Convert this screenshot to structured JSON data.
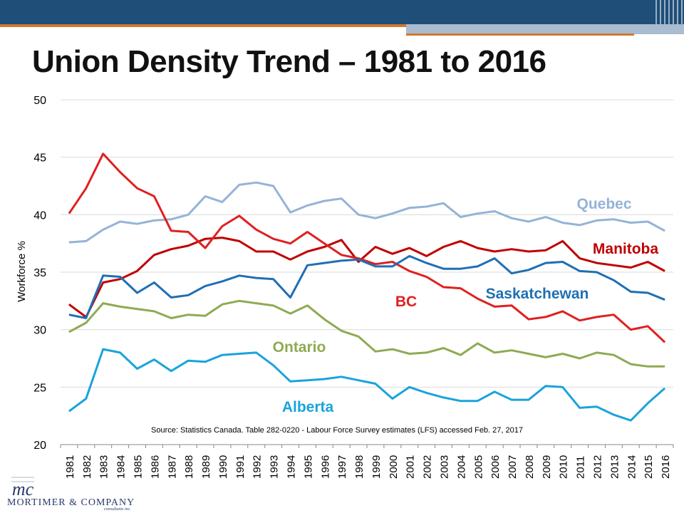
{
  "slide": {
    "title": "Union Density Trend – 1981 to 2016"
  },
  "logo": {
    "company": "MORTIMER & COMPANY",
    "sub": "consultants inc.",
    "monogram": "mc"
  },
  "chart_data": {
    "type": "line",
    "title": "",
    "xlabel": "",
    "ylabel": "Workforce %",
    "ylim": [
      20,
      50
    ],
    "yticks": [
      20,
      25,
      30,
      35,
      40,
      45,
      50
    ],
    "grid": true,
    "source": "Source: Statistics Canada. Table 282-0220  - Labour Force Survey estimates (LFS) accessed Feb. 27, 2017",
    "categories": [
      "1981",
      "1982",
      "1983",
      "1984",
      "1985",
      "1986",
      "1987",
      "1988",
      "1989",
      "1990",
      "1991",
      "1992",
      "1993",
      "1994",
      "1995",
      "1996",
      "1997",
      "1998",
      "1999",
      "2000",
      "2001",
      "2002",
      "2003",
      "2004",
      "2005",
      "2006",
      "2007",
      "2008",
      "2009",
      "2010",
      "2011",
      "2012",
      "2013",
      "2014",
      "2015",
      "2016"
    ],
    "series": [
      {
        "name": "Quebec",
        "color": "#95b3d7",
        "values": [
          37.6,
          37.7,
          38.7,
          39.4,
          39.2,
          39.5,
          39.6,
          40.0,
          41.6,
          41.1,
          42.6,
          42.8,
          42.5,
          40.2,
          40.8,
          41.2,
          41.4,
          40.0,
          39.7,
          40.1,
          40.6,
          40.7,
          41.0,
          39.8,
          40.1,
          40.3,
          39.7,
          39.4,
          39.8,
          39.3,
          39.1,
          39.5,
          39.6,
          39.3,
          39.4,
          38.6
        ]
      },
      {
        "name": "Manitoba",
        "color": "#c00000",
        "values": [
          32.2,
          31.1,
          34.1,
          34.4,
          35.1,
          36.5,
          37.0,
          37.3,
          37.9,
          38.0,
          37.7,
          36.8,
          36.8,
          36.1,
          36.8,
          37.2,
          37.8,
          35.9,
          37.2,
          36.6,
          37.1,
          36.4,
          37.2,
          37.7,
          37.1,
          36.8,
          37.0,
          36.8,
          36.9,
          37.7,
          36.2,
          35.8,
          35.6,
          35.4,
          35.9,
          35.1
        ]
      },
      {
        "name": "BC",
        "color": "#e02020",
        "values": [
          40.1,
          42.3,
          45.3,
          43.7,
          42.3,
          41.6,
          38.6,
          38.5,
          37.1,
          39.0,
          39.9,
          38.7,
          37.9,
          37.5,
          38.5,
          37.5,
          36.5,
          36.2,
          35.7,
          35.9,
          35.1,
          34.6,
          33.7,
          33.6,
          32.7,
          32.0,
          32.1,
          30.9,
          31.1,
          31.6,
          30.8,
          31.1,
          31.3,
          30.0,
          30.3,
          28.9
        ]
      },
      {
        "name": "Saskatchewan",
        "color": "#1f6fb4",
        "values": [
          31.3,
          31.0,
          34.7,
          34.6,
          33.2,
          34.1,
          32.8,
          33.0,
          33.8,
          34.2,
          34.7,
          34.5,
          34.4,
          32.8,
          35.6,
          35.8,
          36.0,
          36.1,
          35.5,
          35.5,
          36.4,
          35.8,
          35.3,
          35.3,
          35.5,
          36.2,
          34.9,
          35.2,
          35.8,
          35.9,
          35.1,
          35.0,
          34.3,
          33.3,
          33.2,
          32.6
        ]
      },
      {
        "name": "Ontario",
        "color": "#8faa52",
        "values": [
          29.8,
          30.6,
          32.3,
          32.0,
          31.8,
          31.6,
          31.0,
          31.3,
          31.2,
          32.2,
          32.5,
          32.3,
          32.1,
          31.4,
          32.1,
          30.9,
          29.9,
          29.4,
          28.1,
          28.3,
          27.9,
          28.0,
          28.4,
          27.8,
          28.8,
          28.0,
          28.2,
          27.9,
          27.6,
          27.9,
          27.5,
          28.0,
          27.8,
          27.0,
          26.8,
          26.8
        ]
      },
      {
        "name": "Alberta",
        "color": "#1aa3dc",
        "values": [
          22.9,
          24.0,
          28.3,
          28.0,
          26.6,
          27.4,
          26.4,
          27.3,
          27.2,
          27.8,
          27.9,
          28.0,
          26.9,
          25.5,
          25.6,
          25.7,
          25.9,
          25.6,
          25.3,
          24.0,
          25.0,
          24.5,
          24.1,
          23.8,
          23.8,
          24.6,
          23.9,
          23.9,
          25.1,
          25.0,
          23.2,
          23.3,
          22.6,
          22.1,
          23.6,
          24.9
        ]
      }
    ]
  }
}
